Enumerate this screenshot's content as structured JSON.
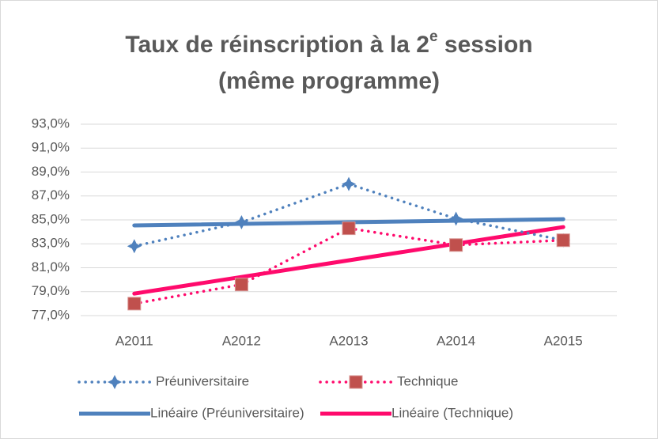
{
  "chart_data": {
    "type": "line",
    "title": {
      "line1": "Taux de réinscription à la 2",
      "superscript": "e",
      "line1_end": " session",
      "line2": "(même programme)"
    },
    "categories": [
      "A2011",
      "A2012",
      "A2013",
      "A2014",
      "A2015"
    ],
    "series": [
      {
        "name": "Préuniversitaire",
        "color": "#4f81bd",
        "marker_color": "#4f81bd",
        "values": [
          82.8,
          84.8,
          88.0,
          85.1,
          83.3
        ],
        "trend_name": "Linéaire (Préuniversitaire)",
        "trend_color": "#4f81bd"
      },
      {
        "name": "Technique",
        "color": "#ff0a6c",
        "marker_color": "#c0504d",
        "values": [
          78.0,
          79.6,
          84.3,
          82.9,
          83.3
        ],
        "trend_name": "Linéaire (Technique)",
        "trend_color": "#ff0a6c"
      }
    ],
    "ylim": [
      77,
      93
    ],
    "yticks": [
      {
        "value": 77,
        "label": "77,0%"
      },
      {
        "value": 79,
        "label": "79,0%"
      },
      {
        "value": 81,
        "label": "81,0%"
      },
      {
        "value": 83,
        "label": "83,0%"
      },
      {
        "value": 85,
        "label": "85,0%"
      },
      {
        "value": 87,
        "label": "87,0%"
      },
      {
        "value": 89,
        "label": "89,0%"
      },
      {
        "value": 91,
        "label": "91,0%"
      },
      {
        "value": 93,
        "label": "93,0%"
      }
    ],
    "grid": true
  }
}
